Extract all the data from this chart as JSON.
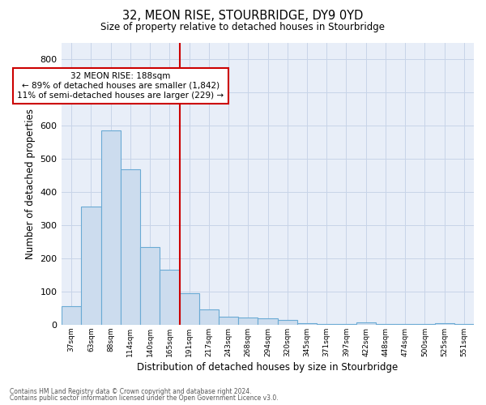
{
  "title": "32, MEON RISE, STOURBRIDGE, DY9 0YD",
  "subtitle": "Size of property relative to detached houses in Stourbridge",
  "xlabel": "Distribution of detached houses by size in Stourbridge",
  "ylabel": "Number of detached properties",
  "bar_labels": [
    "37sqm",
    "63sqm",
    "88sqm",
    "114sqm",
    "140sqm",
    "165sqm",
    "191sqm",
    "217sqm",
    "243sqm",
    "268sqm",
    "294sqm",
    "320sqm",
    "345sqm",
    "371sqm",
    "397sqm",
    "422sqm",
    "448sqm",
    "474sqm",
    "500sqm",
    "525sqm",
    "551sqm"
  ],
  "bar_values": [
    57,
    355,
    585,
    468,
    235,
    165,
    95,
    45,
    25,
    22,
    20,
    15,
    5,
    2,
    2,
    8,
    2,
    2,
    2,
    5,
    2
  ],
  "bar_color": "#ccdcee",
  "bar_edge_color": "#6aaad4",
  "property_line_index": 6,
  "annotation_text_line1": "32 MEON RISE: 188sqm",
  "annotation_text_line2": "← 89% of detached houses are smaller (1,842)",
  "annotation_text_line3": "11% of semi-detached houses are larger (229) →",
  "annotation_box_facecolor": "#ffffff",
  "annotation_border_color": "#cc0000",
  "vertical_line_color": "#cc0000",
  "ylim": [
    0,
    850
  ],
  "yticks": [
    0,
    100,
    200,
    300,
    400,
    500,
    600,
    700,
    800
  ],
  "grid_color": "#c8d4e8",
  "background_color": "#e8eef8",
  "footer_line1": "Contains HM Land Registry data © Crown copyright and database right 2024.",
  "footer_line2": "Contains public sector information licensed under the Open Government Licence v3.0."
}
